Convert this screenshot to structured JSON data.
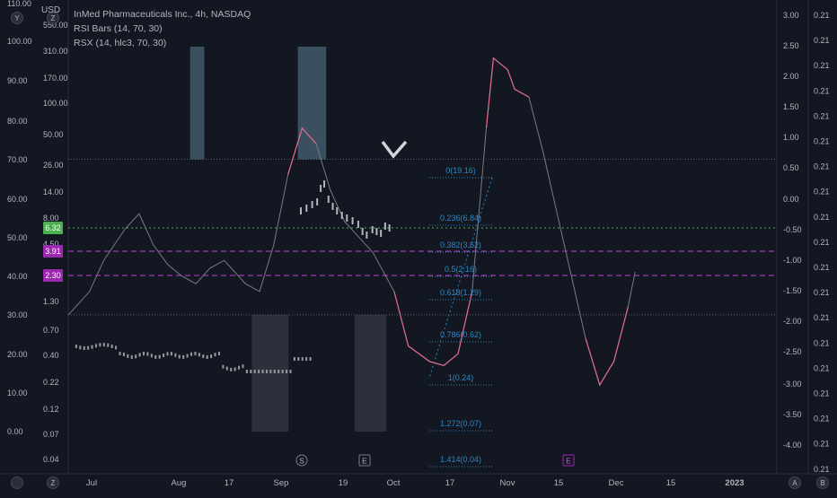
{
  "header": {
    "title": "InMed Pharmaceuticals Inc., 4h, NASDAQ",
    "indicators": [
      "RSI Bars (14, 70, 30)",
      "RSX (14, hlc3, 70, 30)"
    ],
    "currency": "USD"
  },
  "colors": {
    "background": "#131722",
    "price_label_green": "#4caf50",
    "price_label_purple": "#9c27b0",
    "dashed_line_purple": "#c040d0",
    "dotted_line_green": "#4caf50",
    "fib": "#2e86c1",
    "rsx_line": "#787b86",
    "rsi_highlight": "#5b7f93"
  },
  "axes": {
    "rsi_scale": [
      "110.00",
      "100.00",
      "90.00",
      "80.00",
      "70.00",
      "60.00",
      "50.00",
      "40.00",
      "30.00",
      "20.00",
      "10.00",
      "0.00"
    ],
    "price_scale": [
      "550.00",
      "310.00",
      "170.00",
      "100.00",
      "50.00",
      "26.00",
      "14.00",
      "8.00",
      "4.50",
      "1.30",
      "0.70",
      "0.40",
      "0.22",
      "0.12",
      "0.07",
      "0.04"
    ],
    "right_scale": [
      "3.00",
      "2.50",
      "2.00",
      "1.50",
      "1.00",
      "0.50",
      "0.00",
      "-0.50",
      "-1.00",
      "-1.50",
      "-2.00",
      "-2.50",
      "-3.00",
      "-3.50",
      "-4.00"
    ],
    "far_right_value": "0.21",
    "x_ticks": [
      "Jul",
      "Aug",
      "17",
      "Sep",
      "19",
      "Oct",
      "17",
      "Nov",
      "15",
      "Dec",
      "15",
      "2023"
    ]
  },
  "price_labels": [
    "6.32",
    "3.91",
    "2.30"
  ],
  "fib_levels": [
    {
      "ratio": "0",
      "value": "19.16"
    },
    {
      "ratio": "0.236",
      "value": "6.84"
    },
    {
      "ratio": "0.382",
      "value": "3.62"
    },
    {
      "ratio": "0.5",
      "value": "2.16"
    },
    {
      "ratio": "0.618",
      "value": "1.29"
    },
    {
      "ratio": "0.786",
      "value": "0.62"
    },
    {
      "ratio": "1",
      "value": "0.24"
    },
    {
      "ratio": "1.272",
      "value": "0.07"
    },
    {
      "ratio": "1.414",
      "value": "0.04"
    }
  ],
  "event_markers": [
    "S",
    "E",
    "E"
  ],
  "corner_buttons": [
    "Y",
    "Z",
    "Z",
    "A",
    "B"
  ],
  "chart_data": {
    "type": "line",
    "ylim_left": [
      0,
      110
    ],
    "ylim_right": [
      -4.2,
      3.0
    ],
    "overbought": 70,
    "oversold": 30,
    "series": [
      {
        "values": [
          {
            "t": 0,
            "v": 30
          },
          {
            "t": 0.03,
            "v": 36
          },
          {
            "t": 0.05,
            "v": 44
          },
          {
            "t": 0.08,
            "v": 52
          },
          {
            "t": 0.1,
            "v": 56
          },
          {
            "t": 0.12,
            "v": 48
          },
          {
            "t": 0.14,
            "v": 43
          },
          {
            "t": 0.16,
            "v": 40
          },
          {
            "t": 0.18,
            "v": 38
          },
          {
            "t": 0.2,
            "v": 42
          },
          {
            "t": 0.22,
            "v": 44
          },
          {
            "t": 0.25,
            "v": 38
          },
          {
            "t": 0.27,
            "v": 36
          },
          {
            "t": 0.29,
            "v": 48
          },
          {
            "t": 0.31,
            "v": 66
          },
          {
            "t": 0.33,
            "v": 78
          },
          {
            "t": 0.35,
            "v": 74
          },
          {
            "t": 0.37,
            "v": 62
          },
          {
            "t": 0.39,
            "v": 54
          },
          {
            "t": 0.41,
            "v": 50
          },
          {
            "t": 0.43,
            "v": 46
          },
          {
            "t": 0.46,
            "v": 36
          },
          {
            "t": 0.48,
            "v": 22
          },
          {
            "t": 0.51,
            "v": 18
          },
          {
            "t": 0.53,
            "v": 17
          },
          {
            "t": 0.55,
            "v": 20
          },
          {
            "t": 0.57,
            "v": 36
          },
          {
            "t": 0.59,
            "v": 78
          },
          {
            "t": 0.6,
            "v": 96
          },
          {
            "t": 0.62,
            "v": 93
          },
          {
            "t": 0.63,
            "v": 88
          },
          {
            "t": 0.65,
            "v": 86
          },
          {
            "t": 0.67,
            "v": 72
          },
          {
            "t": 0.69,
            "v": 56
          },
          {
            "t": 0.71,
            "v": 40
          },
          {
            "t": 0.73,
            "v": 24
          },
          {
            "t": 0.75,
            "v": 12
          },
          {
            "t": 0.77,
            "v": 18
          },
          {
            "t": 0.79,
            "v": 32
          },
          {
            "t": 0.8,
            "v": 41
          }
        ]
      }
    ]
  }
}
